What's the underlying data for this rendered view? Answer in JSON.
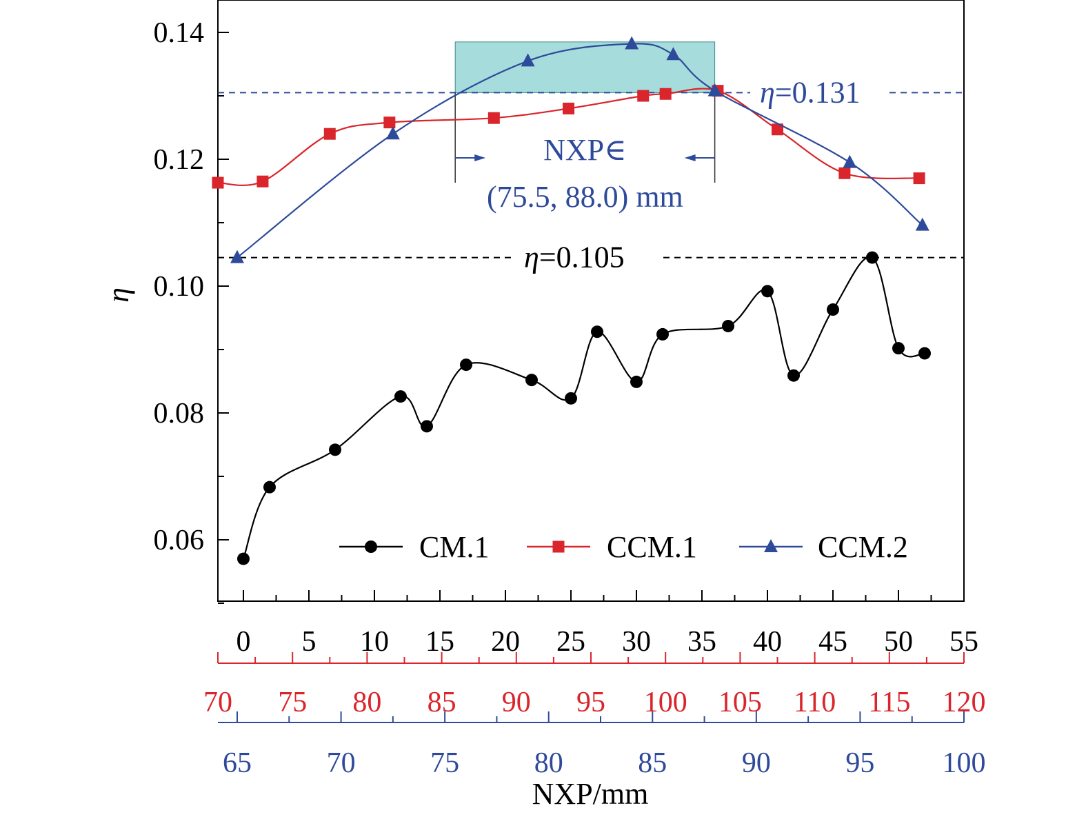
{
  "chart_data": {
    "type": "line",
    "title": "",
    "ylabel": "η",
    "xlabel": "NXP/mm",
    "ylim": [
      0.05,
      0.145
    ],
    "yticks": [
      0.06,
      0.08,
      0.1,
      0.12,
      0.14
    ],
    "ytick_labels": [
      "0.06",
      "0.08",
      "0.10",
      "0.12",
      "0.14"
    ],
    "grid": false,
    "legend_position": "bottom-right",
    "x_axes": [
      {
        "name": "black",
        "color": "#000000",
        "range": [
          -2,
          55
        ],
        "ticks": [
          0,
          5,
          10,
          15,
          20,
          25,
          30,
          35,
          40,
          45,
          50,
          55
        ],
        "labels": [
          "0",
          "5",
          "10",
          "15",
          "20",
          "25",
          "30",
          "35",
          "40",
          "45",
          "50",
          "55"
        ]
      },
      {
        "name": "red",
        "color": "#d9252b",
        "range": [
          70,
          120
        ],
        "ticks": [
          70,
          75,
          80,
          85,
          90,
          95,
          100,
          105,
          110,
          115,
          120
        ],
        "labels": [
          "70",
          "75",
          "80",
          "85",
          "90",
          "95",
          "100",
          "105",
          "110",
          "115",
          "120"
        ]
      },
      {
        "name": "blue",
        "color": "#2e4a9a",
        "range": [
          65,
          100
        ],
        "ticks": [
          65,
          70,
          75,
          80,
          85,
          90,
          95,
          100
        ],
        "labels": [
          "65",
          "70",
          "75",
          "80",
          "85",
          "90",
          "95",
          "100"
        ]
      }
    ],
    "series": [
      {
        "name": "CM.1",
        "axis": "black",
        "color": "#000000",
        "marker": "circle",
        "x": [
          0,
          2,
          7,
          12,
          14,
          17,
          22,
          25,
          27,
          30,
          32,
          37,
          40,
          42,
          45,
          48,
          50,
          52
        ],
        "y": [
          0.057,
          0.0683,
          0.0742,
          0.0826,
          0.0779,
          0.0876,
          0.0852,
          0.0823,
          0.0928,
          0.0849,
          0.0924,
          0.0937,
          0.0992,
          0.0859,
          0.0963,
          0.1045,
          0.0902,
          0.0894
        ]
      },
      {
        "name": "CCM.1",
        "axis": "red",
        "color": "#d9252b",
        "marker": "square",
        "x": [
          70,
          73,
          77.5,
          81.5,
          88.5,
          93.5,
          98.5,
          100,
          103.5,
          107.5,
          112,
          117
        ],
        "y": [
          0.1163,
          0.1165,
          0.124,
          0.1258,
          0.1265,
          0.128,
          0.13,
          0.1303,
          0.1308,
          0.1247,
          0.1178,
          0.117
        ]
      },
      {
        "name": "CCM.2",
        "axis": "blue",
        "color": "#2e4a9a",
        "marker": "triangle",
        "x": [
          65,
          72.5,
          79,
          84,
          86,
          88,
          94.5,
          98
        ],
        "y": [
          0.1045,
          0.124,
          0.1355,
          0.1382,
          0.1365,
          0.1308,
          0.1195,
          0.1096
        ]
      }
    ],
    "reference_lines": [
      {
        "label": "η=0.131",
        "y": 0.1305,
        "color": "#2e4a9a",
        "style": "dashed"
      },
      {
        "label": "η=0.105",
        "y": 0.1045,
        "color": "#000000",
        "style": "dashed"
      }
    ],
    "shaded_region": {
      "axis": "blue",
      "x": [
        75.5,
        88.0
      ],
      "y": [
        0.1305,
        0.1385
      ],
      "color": "#a6dcdc"
    },
    "range_annotation": {
      "line1": "NXP∈",
      "line2": "(75.5, 88.0) mm",
      "color": "#2e4a9a"
    }
  }
}
